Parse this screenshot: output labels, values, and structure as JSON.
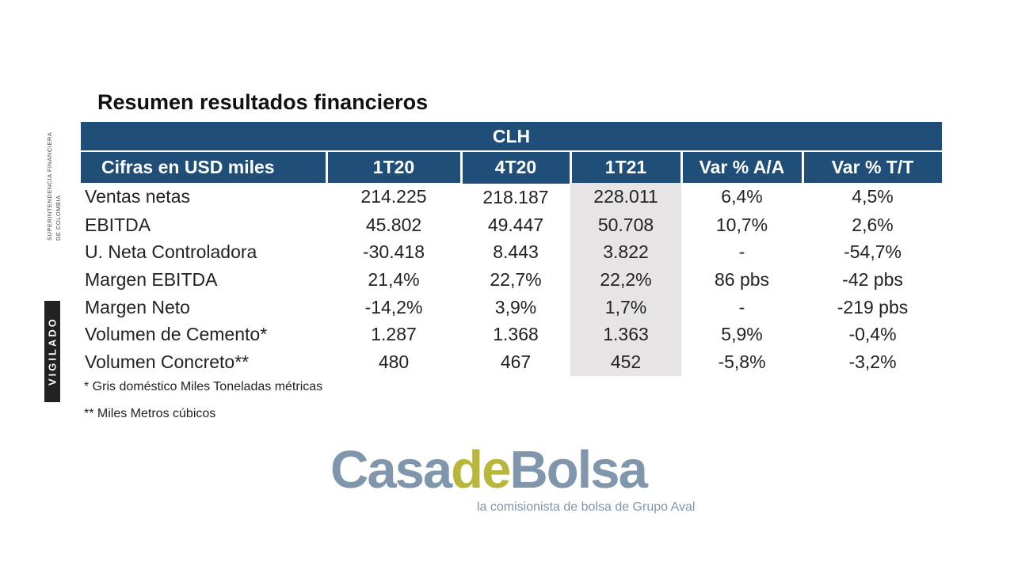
{
  "stamp": {
    "vigilado": "VIGILADO",
    "line1": "SUPERINTENDENCIA FINANCIERA",
    "line2": "DE COLOMBIA"
  },
  "title": "Resumen resultados financieros",
  "table": {
    "group_header": "CLH",
    "columns": [
      "Cifras en USD miles",
      "1T20",
      "4T20",
      "1T21",
      "Var % A/A",
      "Var % T/T"
    ],
    "rows": [
      {
        "label": "Ventas netas",
        "values": [
          "214.225",
          "218.187",
          "228.011",
          "6,4%",
          "4,5%"
        ]
      },
      {
        "label": "EBITDA",
        "values": [
          "45.802",
          "49.447",
          "50.708",
          "10,7%",
          "2,6%"
        ]
      },
      {
        "label": "U. Neta Controladora",
        "values": [
          "-30.418",
          "8.443",
          "3.822",
          "-",
          "-54,7%"
        ]
      },
      {
        "label": "Margen EBITDA",
        "values": [
          "21,4%",
          "22,7%",
          "22,2%",
          "86 pbs",
          "-42 pbs"
        ]
      },
      {
        "label": "Margen Neto",
        "values": [
          "-14,2%",
          "3,9%",
          "1,7%",
          "-",
          "-219 pbs"
        ]
      },
      {
        "label": "Volumen de Cemento*",
        "values": [
          "1.287",
          "1.368",
          "1.363",
          "5,9%",
          "-0,4%"
        ]
      },
      {
        "label": "Volumen Concreto**",
        "values": [
          "480",
          "467",
          "452",
          "-5,8%",
          "-3,2%"
        ]
      }
    ]
  },
  "notes": [
    "* Gris doméstico Miles Toneladas métricas",
    "** Miles Metros cúbicos"
  ],
  "logo": {
    "part1": "Casa",
    "part2": "de",
    "part3": "Bolsa",
    "tagline": "la comisionista de bolsa de Grupo Aval"
  },
  "colors": {
    "header_bg": "#1f4e79",
    "highlight_col": "#e6e4e4",
    "logo_blue": "#7f96ad",
    "logo_green": "#b8b73c"
  }
}
